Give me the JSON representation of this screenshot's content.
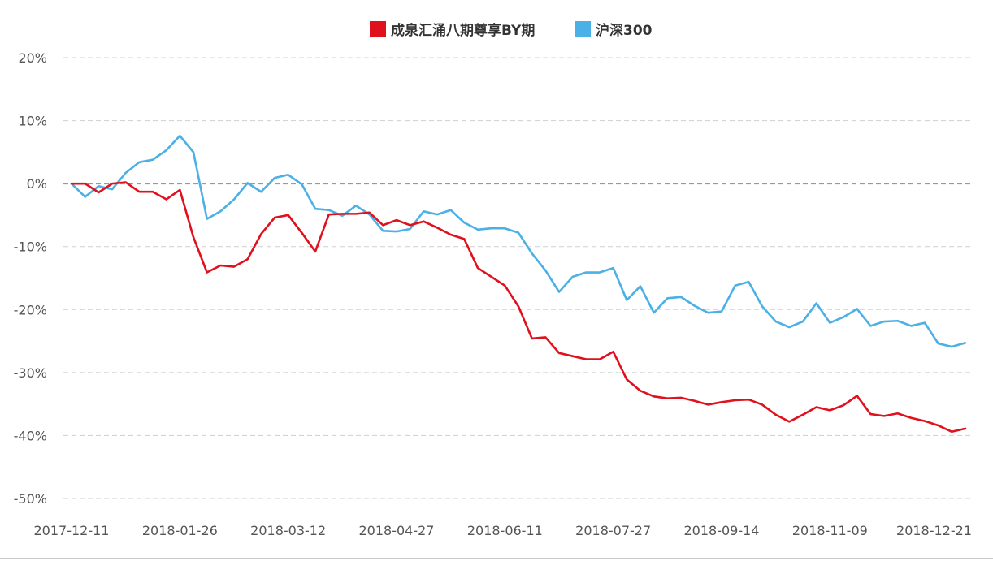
{
  "chart_data": {
    "type": "line",
    "title": "",
    "xlabel": "",
    "ylabel": "",
    "ylim": [
      -50,
      20
    ],
    "y_ticks": [
      20,
      10,
      0,
      -10,
      -20,
      -30,
      -40,
      -50
    ],
    "y_tick_labels": [
      "20%",
      "10%",
      "0%",
      "-10%",
      "-20%",
      "-30%",
      "-40%",
      "-50%"
    ],
    "x_tick_labels": [
      "2017-12-11",
      "2018-01-26",
      "2018-03-12",
      "2018-04-27",
      "2018-06-11",
      "2018-07-27",
      "2018-09-14",
      "2018-11-09",
      "2018-12-21"
    ],
    "x_tick_indices": [
      0,
      8,
      16,
      24,
      32,
      40,
      48,
      56,
      63
    ],
    "grid": true,
    "zero_line": true,
    "legend_position": "top-center",
    "series": [
      {
        "name": "成泉汇涌八期尊享BY期",
        "color": "#e0101d",
        "values": [
          0,
          0,
          -1.4,
          0,
          0.2,
          -1.3,
          -1.3,
          -2.5,
          -1,
          -8.5,
          -14.1,
          -13,
          -13.2,
          -12,
          -8,
          -5.4,
          -5,
          -7.8,
          -10.8,
          -4.9,
          -4.8,
          -4.8,
          -4.6,
          -6.6,
          -5.8,
          -6.6,
          -6,
          -7,
          -8.1,
          -8.8,
          -13.4,
          -14.8,
          -16.2,
          -19.5,
          -24.6,
          -24.4,
          -26.9,
          -27.4,
          -27.9,
          -27.9,
          -26.7,
          -31.1,
          -32.9,
          -33.8,
          -34.1,
          -34,
          -34.5,
          -35.1,
          -34.7,
          -34.4,
          -34.3,
          -35.1,
          -36.7,
          -37.8,
          -36.7,
          -35.5,
          -36,
          -35.2,
          -33.7,
          -36.6,
          -36.9,
          -36.5,
          -37.2,
          -37.7,
          -38.4,
          -39.4,
          -38.9
        ]
      },
      {
        "name": "沪深300",
        "color": "#4ab0e6",
        "values": [
          0,
          -2.1,
          -0.4,
          -0.9,
          1.7,
          3.4,
          3.8,
          5.3,
          7.6,
          5,
          -5.6,
          -4.4,
          -2.5,
          0.1,
          -1.3,
          0.9,
          1.4,
          -0.1,
          -4,
          -4.2,
          -5.1,
          -3.5,
          -4.9,
          -7.5,
          -7.6,
          -7.2,
          -4.4,
          -4.9,
          -4.2,
          -6.2,
          -7.3,
          -7.1,
          -7.1,
          -7.8,
          -11.1,
          -13.8,
          -17.2,
          -14.8,
          -14.1,
          -14.1,
          -13.4,
          -18.5,
          -16.3,
          -20.5,
          -18.2,
          -18,
          -19.4,
          -20.5,
          -20.3,
          -16.2,
          -15.6,
          -19.5,
          -21.9,
          -22.8,
          -21.9,
          -19,
          -22.1,
          -21.2,
          -19.9,
          -22.6,
          -21.9,
          -21.8,
          -22.6,
          -22.1,
          -25.4,
          -25.9,
          -25.3
        ]
      }
    ]
  }
}
